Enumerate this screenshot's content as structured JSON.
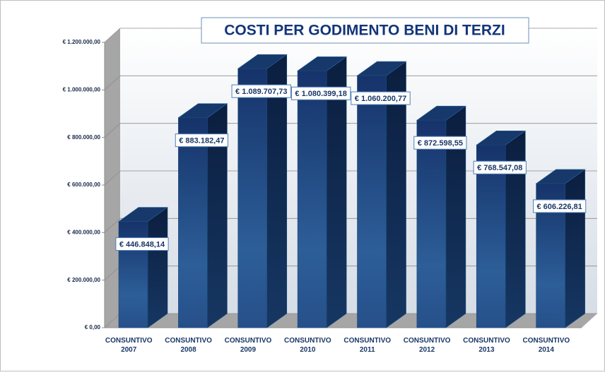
{
  "chart_data": {
    "type": "bar3d",
    "title": "COSTI PER GODIMENTO BENI DI TERZI",
    "categories": [
      "CONSUNTIVO 2007",
      "CONSUNTIVO 2008",
      "CONSUNTIVO 2009",
      "CONSUNTIVO 2010",
      "CONSUNTIVO 2011",
      "CONSUNTIVO 2012",
      "CONSUNTIVO 2013",
      "CONSUNTIVO 2014"
    ],
    "values": [
      446848.14,
      883182.47,
      1089707.73,
      1080399.18,
      1060200.77,
      872598.55,
      768547.08,
      606226.81
    ],
    "value_labels": [
      "€ 446.848,14",
      "€ 883.182,47",
      "€ 1.089.707,73",
      "€ 1.080.399,18",
      "€ 1.060.200,77",
      "€ 872.598,55",
      "€ 768.547,08",
      "€ 606.226,81"
    ],
    "color": "#1f4a85",
    "ylim": [
      0,
      1200000
    ],
    "yticks": [
      {
        "value": 0,
        "label": "€ 0,00"
      },
      {
        "value": 200000,
        "label": "€ 200.000,00"
      },
      {
        "value": 400000,
        "label": "€ 400.000,00"
      },
      {
        "value": 600000,
        "label": "€ 600.000,00"
      },
      {
        "value": 800000,
        "label": "€ 800.000,00"
      },
      {
        "value": 1000000,
        "label": "€ 1.000.000,00"
      },
      {
        "value": 1200000,
        "label": "€ 1.200.000,00"
      }
    ],
    "grid": true
  }
}
